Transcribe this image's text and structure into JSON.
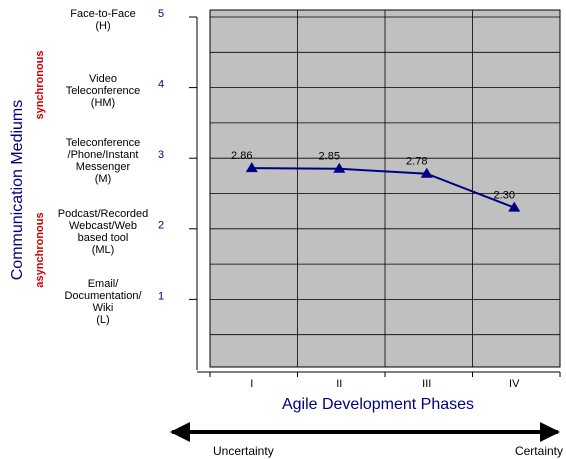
{
  "chart_data": {
    "type": "line",
    "x_label": "Agile Development Phases",
    "y_label": "Communication Mediums",
    "categories": [
      "I",
      "II",
      "III",
      "IV"
    ],
    "values": [
      2.86,
      2.85,
      2.78,
      2.3
    ],
    "value_labels": [
      "2.86",
      "2.85",
      "2.78",
      "2.30"
    ],
    "color": "#000080",
    "ylim": [
      0,
      5
    ],
    "yticks": [
      1,
      2,
      3,
      4,
      5
    ],
    "ytick_descriptions": [
      "Email/\nDocumentation/\nWiki\n(L)",
      "Podcast/Recorded\nWebcast/Web\nbased tool\n(ML)",
      "Teleconference\n/Phone/Instant\nMessenger\n(M)",
      "Video\nTeleconference\n(HM)",
      "Face-to-Face\n(H)"
    ],
    "grid": true,
    "yminor_ticks": [
      0.5,
      1,
      1.5,
      2,
      2.5,
      3,
      3.5,
      4,
      4.5,
      5
    ],
    "zone_labels": [
      "synchronous",
      "asynchronous"
    ],
    "arrow_labels": [
      "Uncertainty",
      "Certainty"
    ]
  }
}
